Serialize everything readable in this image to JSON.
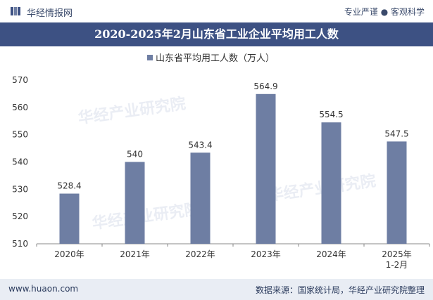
{
  "header": {
    "brand": "华经情报网",
    "slogan": "专业严谨 ● 客观科学"
  },
  "title": "2020-2025年2月山东省工业企业平均用工人数",
  "footer": {
    "site": "www.huaon.com",
    "source": "数据来源：国家统计局，华经产业研究院整理"
  },
  "watermark": "华经产业研究院",
  "colors": {
    "bar": "#6e7ea3",
    "titlebar": "#3d5183"
  },
  "chart_data": {
    "type": "bar",
    "title": "2020-2025年2月山东省工业企业平均用工人数",
    "legend": "山东省平均用工人数（万人）",
    "categories": [
      "2020年",
      "2021年",
      "2022年",
      "2023年",
      "2024年",
      "2025年\n1-2月"
    ],
    "values": [
      528.4,
      540,
      543.4,
      564.9,
      554.5,
      547.5
    ],
    "value_labels": [
      "528.4",
      "540",
      "543.4",
      "564.9",
      "554.5",
      "547.5"
    ],
    "ylim": [
      510,
      570
    ],
    "yticks": [
      510,
      520,
      530,
      540,
      550,
      560,
      570
    ],
    "xlabel": "",
    "ylabel": "",
    "grid": false
  }
}
